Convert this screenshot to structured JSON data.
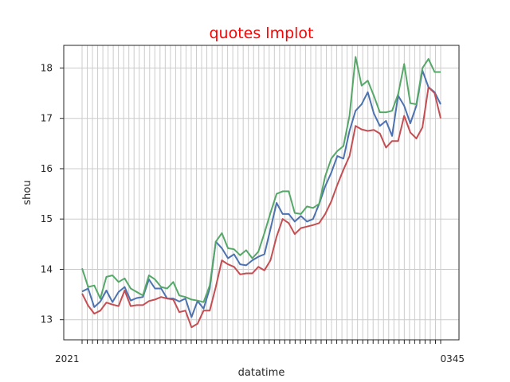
{
  "chart_data": {
    "type": "line",
    "title": "quotes lmplot",
    "title_color": "#ff0000",
    "xlabel": "datatime",
    "ylabel": "shou",
    "ylim": [
      12.6,
      18.45
    ],
    "yticks": [
      13,
      14,
      15,
      16,
      17,
      18
    ],
    "xtick_label_first": "2021",
    "xtick_label_last": "0345",
    "xtick_count": 70,
    "grid": true,
    "legend": "none",
    "series": [
      {
        "color": "#4c72b0",
        "values": [
          13.56,
          13.62,
          13.25,
          13.36,
          13.58,
          13.35,
          13.55,
          13.65,
          13.38,
          13.43,
          13.45,
          13.8,
          13.62,
          13.62,
          13.42,
          13.42,
          13.36,
          13.42,
          13.05,
          13.37,
          13.22,
          13.62,
          14.55,
          14.42,
          14.22,
          14.3,
          14.1,
          14.08,
          14.18,
          14.25,
          14.3,
          14.8,
          15.32,
          15.1,
          15.1,
          14.95,
          15.06,
          14.95,
          15.0,
          15.3,
          15.65,
          15.92,
          16.25,
          16.2,
          16.75,
          17.15,
          17.28,
          17.52,
          17.1,
          16.85,
          16.95,
          16.65,
          17.45,
          17.25,
          16.9,
          17.25,
          17.95,
          17.62,
          17.52,
          17.28
        ]
      },
      {
        "color": "#55a868",
        "values": [
          14.02,
          13.65,
          13.68,
          13.42,
          13.85,
          13.88,
          13.75,
          13.82,
          13.62,
          13.55,
          13.48,
          13.88,
          13.8,
          13.65,
          13.62,
          13.75,
          13.48,
          13.45,
          13.4,
          13.38,
          13.35,
          13.68,
          14.55,
          14.72,
          14.42,
          14.4,
          14.28,
          14.38,
          14.22,
          14.35,
          14.72,
          15.12,
          15.5,
          15.55,
          15.55,
          15.12,
          15.1,
          15.25,
          15.22,
          15.3,
          15.85,
          16.2,
          16.35,
          16.45,
          17.05,
          18.22,
          17.65,
          17.75,
          17.45,
          17.12,
          17.12,
          17.15,
          17.48,
          18.08,
          17.3,
          17.28,
          18.0,
          18.18,
          17.92,
          17.92
        ]
      },
      {
        "color": "#c44e52",
        "values": [
          13.52,
          13.28,
          13.12,
          13.18,
          13.34,
          13.3,
          13.27,
          13.58,
          13.27,
          13.29,
          13.29,
          13.37,
          13.4,
          13.45,
          13.42,
          13.4,
          13.15,
          13.18,
          12.85,
          12.92,
          13.18,
          13.18,
          13.65,
          14.18,
          14.1,
          14.05,
          13.9,
          13.92,
          13.92,
          14.05,
          13.98,
          14.18,
          14.65,
          15.0,
          14.92,
          14.7,
          14.82,
          14.85,
          14.88,
          14.92,
          15.1,
          15.35,
          15.68,
          15.98,
          16.25,
          16.85,
          16.78,
          16.75,
          16.77,
          16.7,
          16.42,
          16.55,
          16.55,
          17.05,
          16.72,
          16.6,
          16.82,
          17.62,
          17.5,
          17.0
        ]
      }
    ]
  }
}
